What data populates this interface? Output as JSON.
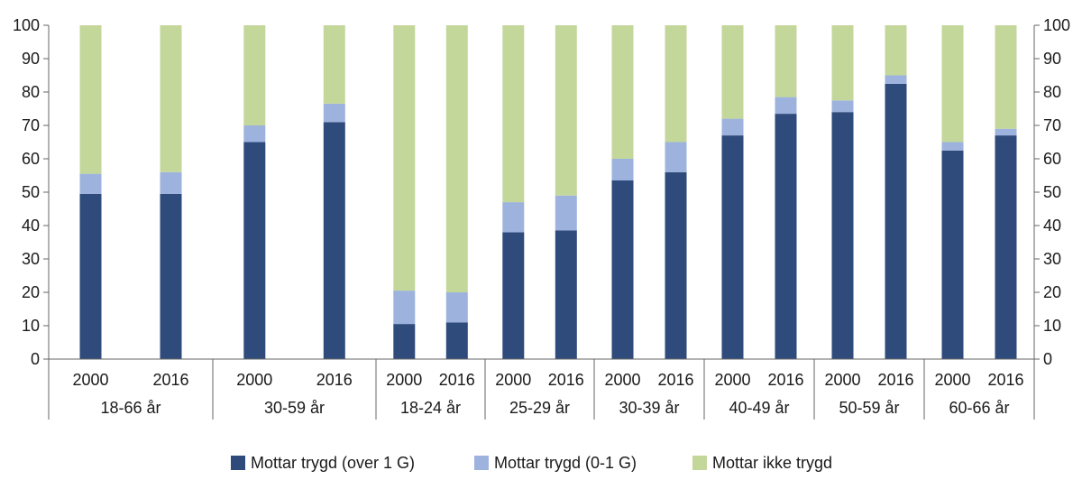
{
  "chart_data": {
    "type": "bar",
    "stacked": true,
    "ylim": [
      0,
      100
    ],
    "yticks": [
      0,
      10,
      20,
      30,
      40,
      50,
      60,
      70,
      80,
      90,
      100
    ],
    "grid": false,
    "legend_position": "bottom",
    "groups": [
      {
        "label": "18-66 år",
        "categories": [
          "2000",
          "2016"
        ]
      },
      {
        "label": "30-59 år",
        "categories": [
          "2000",
          "2016"
        ]
      },
      {
        "label": "18-24 år",
        "categories": [
          "2000",
          "2016"
        ]
      },
      {
        "label": "25-29 år",
        "categories": [
          "2000",
          "2016"
        ]
      },
      {
        "label": "30-39 år",
        "categories": [
          "2000",
          "2016"
        ]
      },
      {
        "label": "40-49 år",
        "categories": [
          "2000",
          "2016"
        ]
      },
      {
        "label": "50-59 år",
        "categories": [
          "2000",
          "2016"
        ]
      },
      {
        "label": "60-66 år",
        "categories": [
          "2000",
          "2016"
        ]
      }
    ],
    "series": [
      {
        "name": "Mottar trygd (over 1 G)",
        "color": "#2f4b7c",
        "values": [
          49.5,
          49.5,
          65,
          71,
          10.5,
          11,
          38,
          38.5,
          53.5,
          56,
          67,
          73.5,
          74,
          82.5,
          62.5,
          67
        ]
      },
      {
        "name": "Mottar trygd (0-1 G)",
        "color": "#9db3dd",
        "values": [
          6,
          6.5,
          5,
          5.5,
          10,
          9,
          9,
          10.5,
          6.5,
          9,
          5,
          5,
          3.5,
          2.5,
          2.5,
          2
        ]
      },
      {
        "name": "Mottar ikke trygd",
        "color": "#c4d79b",
        "values": [
          44.5,
          44,
          30,
          23.5,
          79.5,
          80,
          53,
          51,
          40,
          35,
          28,
          21.5,
          22.5,
          15,
          35,
          31
        ]
      }
    ]
  }
}
